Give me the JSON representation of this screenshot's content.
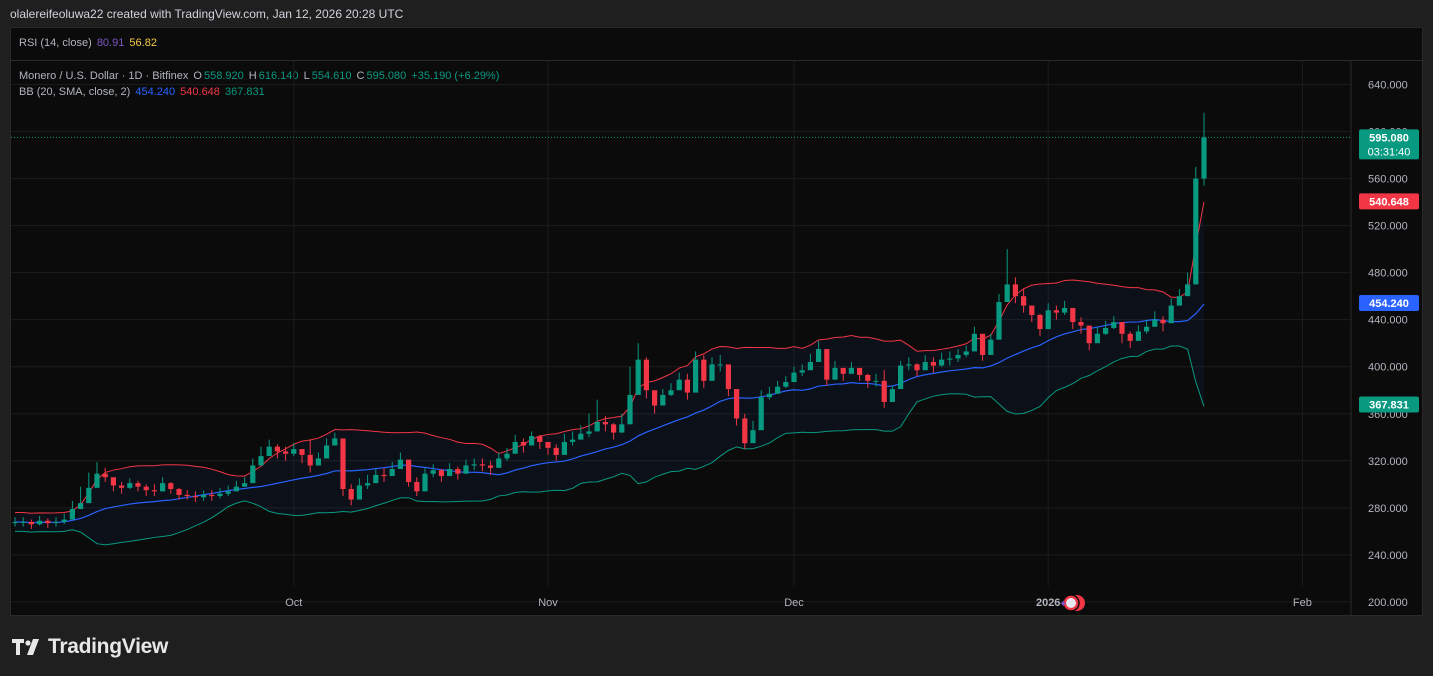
{
  "header": {
    "attribution": "olalereifeoluwa22 created with TradingView.com, Jan 12, 2026 20:28 UTC"
  },
  "rsi": {
    "label": "RSI (14, close)",
    "value1": "80.91",
    "value2": "56.82"
  },
  "legend": {
    "symbol": "Monero / U.S. Dollar · 1D · Bitfinex",
    "o_label": "O",
    "o_val": "558.920",
    "h_label": "H",
    "h_val": "616.140",
    "l_label": "L",
    "l_val": "554.610",
    "c_label": "C",
    "c_val": "595.080",
    "change": "+35.190 (+6.29%)",
    "bb_label": "BB (20, SMA, close, 2)",
    "bb_basis": "454.240",
    "bb_upper": "540.648",
    "bb_lower": "367.831"
  },
  "price_badges": {
    "last": "595.080",
    "countdown": "03:31:40",
    "upper": "540.648",
    "basis": "454.240",
    "lower": "367.831"
  },
  "brand": {
    "name": "TradingView"
  },
  "colors": {
    "up": "#089981",
    "down": "#f23645",
    "upper_band": "#f23645",
    "basis": "#2962ff",
    "lower_band": "#089981",
    "background": "#0b0b0b"
  },
  "chart_data": {
    "type": "candlestick",
    "title": "Monero / U.S. Dollar · 1D · Bitfinex",
    "ylim": [
      188,
      660
    ],
    "y_ticks": [
      "640.000",
      "600.000",
      "560.000",
      "520.000",
      "480.000",
      "440.000",
      "400.000",
      "360.000",
      "320.000",
      "280.000",
      "240.000",
      "200.000"
    ],
    "x_ticks": [
      {
        "label": "Oct",
        "index": 34
      },
      {
        "label": "Nov",
        "index": 65
      },
      {
        "label": "Dec",
        "index": 95
      },
      {
        "label": "2026",
        "index": 126
      },
      {
        "label": "Feb",
        "index": 157
      }
    ],
    "x_count": 175,
    "grid": true,
    "closes": [
      268,
      268,
      266,
      269,
      267,
      268,
      270,
      279,
      284,
      297,
      309,
      306,
      299,
      297,
      301,
      298,
      295,
      294,
      301,
      296,
      291,
      290,
      289,
      291,
      290,
      292,
      294,
      298,
      301,
      316,
      324,
      332,
      328,
      326,
      330,
      325,
      316,
      322,
      333,
      339,
      296,
      287,
      299,
      301,
      308,
      307,
      313,
      321,
      302,
      294,
      309,
      312,
      307,
      313,
      309,
      316,
      317,
      316,
      314,
      322,
      326,
      336,
      333,
      341,
      336,
      331,
      325,
      336,
      338,
      343,
      345,
      353,
      351,
      344,
      351,
      376,
      406,
      380,
      367,
      376,
      380,
      389,
      378,
      406,
      388,
      402,
      402,
      381,
      356,
      335,
      346,
      374,
      377,
      383,
      387,
      395,
      397,
      404,
      415,
      389,
      399,
      394,
      399,
      393,
      388,
      388,
      370,
      381,
      401,
      402,
      397,
      404,
      401,
      406,
      407,
      410,
      413,
      428,
      410,
      423,
      455,
      470,
      460,
      452,
      444,
      432,
      448,
      446,
      450,
      438,
      435,
      420,
      428,
      433,
      438,
      428,
      422,
      430,
      434,
      440,
      437,
      452,
      460,
      470,
      560,
      595
    ],
    "highs": [
      272,
      272,
      270,
      273,
      271,
      272,
      275,
      286,
      298,
      310,
      319,
      314,
      304,
      302,
      305,
      303,
      300,
      300,
      306,
      302,
      297,
      295,
      294,
      295,
      295,
      297,
      299,
      303,
      306,
      322,
      332,
      338,
      334,
      332,
      335,
      330,
      338,
      327,
      339,
      344,
      322,
      300,
      305,
      308,
      313,
      314,
      319,
      327,
      315,
      306,
      314,
      317,
      313,
      318,
      315,
      321,
      322,
      322,
      320,
      327,
      331,
      342,
      339,
      345,
      342,
      336,
      334,
      343,
      345,
      350,
      360,
      372,
      358,
      352,
      360,
      400,
      420,
      408,
      375,
      381,
      386,
      395,
      394,
      413,
      410,
      408,
      410,
      392,
      380,
      360,
      354,
      380,
      383,
      388,
      392,
      400,
      402,
      411,
      422,
      406,
      405,
      399,
      404,
      398,
      394,
      394,
      397,
      384,
      405,
      408,
      403,
      410,
      408,
      412,
      413,
      415,
      418,
      434,
      417,
      428,
      462,
      500,
      476,
      466,
      452,
      445,
      454,
      452,
      456,
      446,
      442,
      430,
      434,
      439,
      443,
      436,
      430,
      435,
      440,
      447,
      443,
      458,
      466,
      480,
      570,
      616
    ],
    "lows": [
      264,
      264,
      262,
      265,
      263,
      264,
      266,
      276,
      280,
      292,
      300,
      302,
      294,
      292,
      296,
      294,
      290,
      290,
      294,
      292,
      287,
      287,
      285,
      286,
      286,
      288,
      290,
      294,
      298,
      310,
      316,
      326,
      322,
      320,
      324,
      318,
      310,
      317,
      327,
      334,
      290,
      282,
      293,
      296,
      302,
      302,
      308,
      314,
      298,
      290,
      304,
      306,
      302,
      308,
      304,
      310,
      312,
      311,
      308,
      316,
      320,
      330,
      327,
      336,
      330,
      325,
      320,
      331,
      333,
      338,
      340,
      348,
      345,
      338,
      344,
      368,
      392,
      373,
      360,
      370,
      375,
      384,
      372,
      398,
      382,
      396,
      396,
      375,
      350,
      330,
      340,
      368,
      372,
      378,
      382,
      390,
      392,
      398,
      408,
      384,
      394,
      388,
      394,
      388,
      382,
      383,
      365,
      376,
      395,
      397,
      392,
      398,
      395,
      400,
      401,
      404,
      408,
      420,
      405,
      418,
      448,
      460,
      454,
      446,
      438,
      426,
      442,
      440,
      444,
      432,
      428,
      414,
      422,
      427,
      432,
      420,
      416,
      424,
      428,
      434,
      430,
      446,
      454,
      462,
      476,
      554
    ]
  }
}
